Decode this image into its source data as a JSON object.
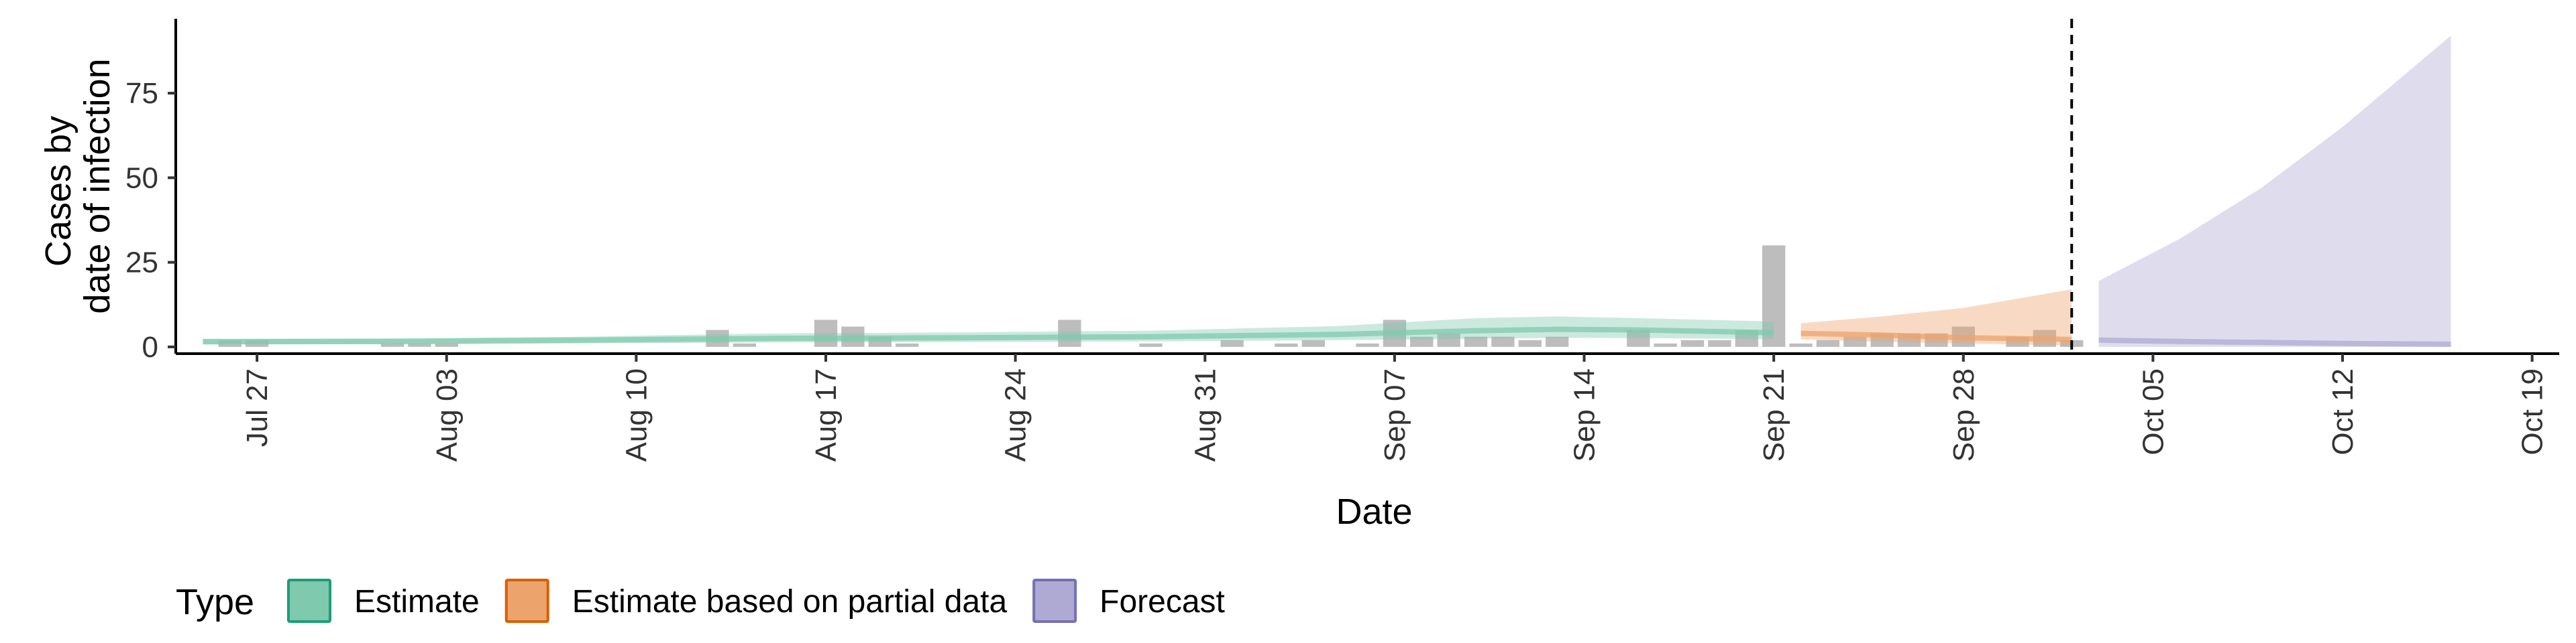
{
  "chart_data": {
    "type": "area",
    "xlabel": "Date",
    "ylabel_lines": [
      "Cases by",
      "date of infection"
    ],
    "x_ticks": [
      "Jul 27",
      "Aug 03",
      "Aug 10",
      "Aug 17",
      "Aug 24",
      "Aug 31",
      "Sep 07",
      "Sep 14",
      "Sep 21",
      "Sep 28",
      "Oct 05",
      "Oct 12",
      "Oct 19"
    ],
    "x_range": [
      "2020-07-24",
      "2020-10-20"
    ],
    "y_ticks": [
      0,
      25,
      50,
      75
    ],
    "ylim": [
      -2,
      97
    ],
    "grid": false,
    "forecast_start_line": "2020-10-02",
    "legend_title": "Type",
    "legend_position": "bottom",
    "legend": [
      {
        "label": "Estimate",
        "fill": "#7fc9ae",
        "stroke": "#1b9e77"
      },
      {
        "label": "Estimate based on partial data",
        "fill": "#eda36c",
        "stroke": "#d95f02"
      },
      {
        "label": "Forecast",
        "fill": "#aeaad3",
        "stroke": "#7570b3"
      }
    ],
    "observed_cases": {
      "color": "#bdbdbd",
      "dates": [
        "2020-07-26",
        "2020-07-27",
        "2020-08-01",
        "2020-08-02",
        "2020-08-03",
        "2020-08-13",
        "2020-08-14",
        "2020-08-17",
        "2020-08-18",
        "2020-08-19",
        "2020-08-20",
        "2020-08-26",
        "2020-08-29",
        "2020-09-01",
        "2020-09-03",
        "2020-09-04",
        "2020-09-06",
        "2020-09-07",
        "2020-09-08",
        "2020-09-09",
        "2020-09-10",
        "2020-09-11",
        "2020-09-12",
        "2020-09-13",
        "2020-09-16",
        "2020-09-17",
        "2020-09-18",
        "2020-09-19",
        "2020-09-20",
        "2020-09-21",
        "2020-09-22",
        "2020-09-23",
        "2020-09-24",
        "2020-09-25",
        "2020-09-26",
        "2020-09-27",
        "2020-09-28",
        "2020-09-30",
        "2020-10-01",
        "2020-10-02"
      ],
      "values": [
        2,
        2,
        1,
        1,
        1,
        5,
        1,
        8,
        6,
        3,
        1,
        8,
        1,
        2,
        1,
        2,
        1,
        8,
        3,
        4,
        3,
        3,
        2,
        3,
        5,
        1,
        2,
        2,
        5,
        30,
        1,
        2,
        3,
        4,
        4,
        4,
        6,
        3,
        5,
        2
      ]
    },
    "series": [
      {
        "name": "Estimate",
        "dates": [
          "2020-07-25",
          "2020-08-01",
          "2020-08-08",
          "2020-08-15",
          "2020-08-22",
          "2020-08-29",
          "2020-09-05",
          "2020-09-10",
          "2020-09-13",
          "2020-09-16",
          "2020-09-21"
        ],
        "median": [
          1.5,
          1.6,
          2.0,
          2.5,
          2.7,
          3.0,
          3.7,
          4.8,
          5.2,
          5.0,
          4.2
        ],
        "lower": [
          0.8,
          0.8,
          1.0,
          1.3,
          1.4,
          1.6,
          2.0,
          2.4,
          2.7,
          2.6,
          2.3
        ],
        "upper": [
          2.4,
          2.5,
          3.0,
          4.0,
          4.3,
          4.8,
          6.2,
          8.5,
          9.0,
          8.5,
          7.5
        ]
      },
      {
        "name": "Estimate based on partial data",
        "dates": [
          "2020-09-22",
          "2020-09-25",
          "2020-09-28",
          "2020-10-02"
        ],
        "median": [
          4.0,
          3.5,
          2.7,
          2.2
        ],
        "lower": [
          2.2,
          1.5,
          1.0,
          0.4
        ],
        "upper": [
          7.0,
          9.0,
          11.5,
          17.0
        ]
      },
      {
        "name": "Forecast",
        "dates": [
          "2020-10-03",
          "2020-10-06",
          "2020-10-09",
          "2020-10-12",
          "2020-10-16"
        ],
        "median": [
          2.0,
          1.6,
          1.3,
          1.0,
          0.8
        ],
        "lower": [
          0.0,
          0.0,
          0.0,
          0.0,
          0.0
        ],
        "upper": [
          19.5,
          32.0,
          47.0,
          65.0,
          92.0
        ]
      }
    ]
  }
}
